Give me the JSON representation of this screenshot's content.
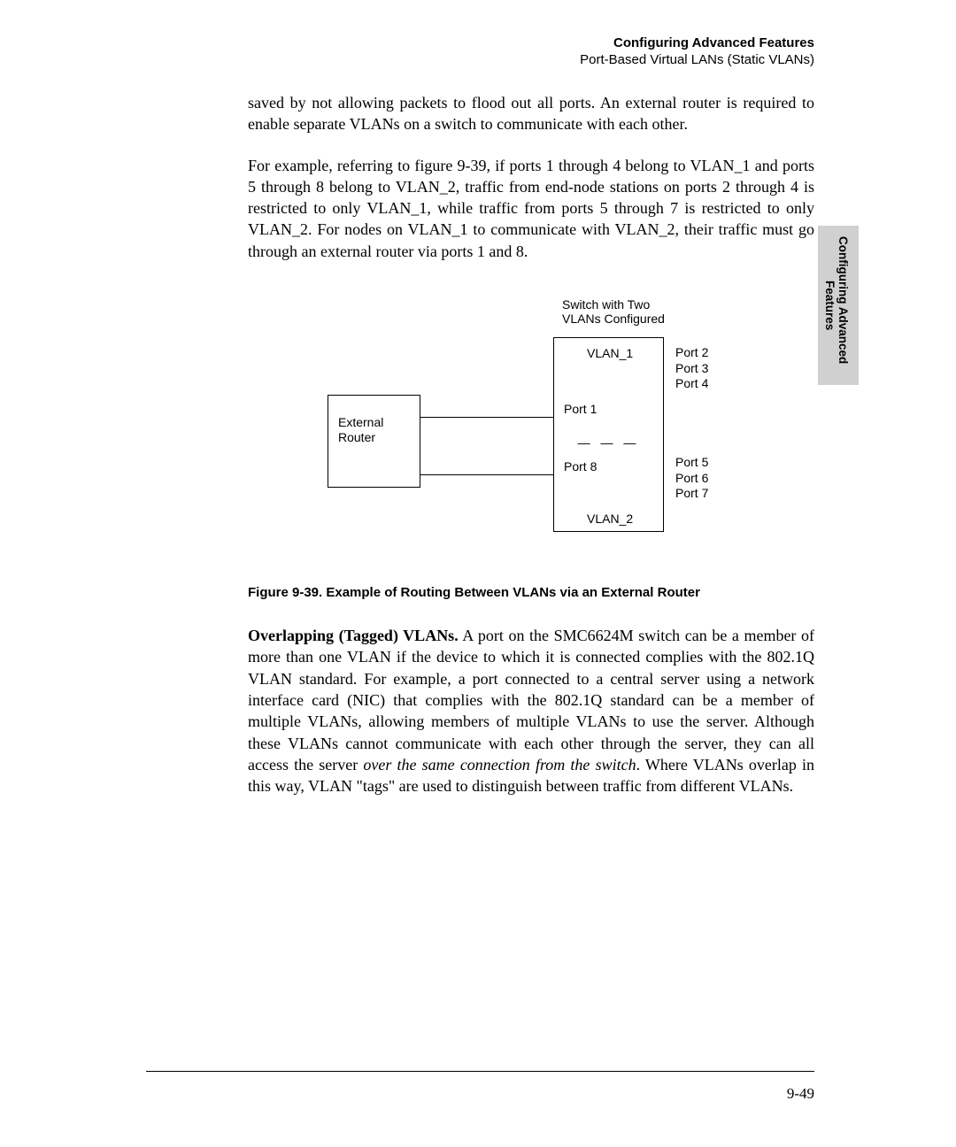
{
  "header": {
    "title": "Configuring Advanced Features",
    "subtitle": "Port-Based Virtual LANs (Static VLANs)"
  },
  "paragraphs": {
    "p1": "saved by not allowing packets to flood out all ports. An external router is required to enable separate VLANs on a switch to communicate with each other.",
    "p2": "For example, referring to figure 9-39, if ports 1 through 4 belong to VLAN_1 and ports 5 through 8 belong to VLAN_2, traffic from end-node stations on ports 2 through 4 is restricted to only VLAN_1, while traffic from ports 5 through 7 is restricted to only VLAN_2. For nodes on VLAN_1 to communicate with VLAN_2, their traffic must go through an external router via ports 1 and 8.",
    "p3_head": "Overlapping (Tagged) VLANs.",
    "p3_body1": "  A port on the SMC6624M switch can be a member of more than one VLAN if the device to which it is connected complies with the 802.1Q VLAN standard. For example, a port connected to a central server using a network interface card (NIC) that complies with the 802.1Q standard can be a member of multiple VLANs, allowing members of multiple VLANs to use the server. Although these VLANs cannot communicate with each other through the server, they can all access the server ",
    "p3_italic": "over the same connection from the switch",
    "p3_body2": ". Where VLANs overlap in this way, VLAN \"tags\" are used to distinguish between traffic from different VLANs."
  },
  "diagram": {
    "switch_label_1": "Switch with Two",
    "switch_label_2": "VLANs Configured",
    "router_label_1": "External",
    "router_label_2": "Router",
    "vlan1": "VLAN_1",
    "vlan2": "VLAN_2",
    "port1": "Port 1",
    "port8": "Port 8",
    "port2": "Port 2",
    "port3": "Port 3",
    "port4": "Port 4",
    "port5": "Port 5",
    "port6": "Port 6",
    "port7": "Port 7",
    "divider": "— — —"
  },
  "figure_caption": "Figure 9-39.  Example of Routing Between VLANs via an External Router",
  "side_tab": {
    "line1": "Configuring Advanced",
    "line2": "Features"
  },
  "page_number": "9-49"
}
